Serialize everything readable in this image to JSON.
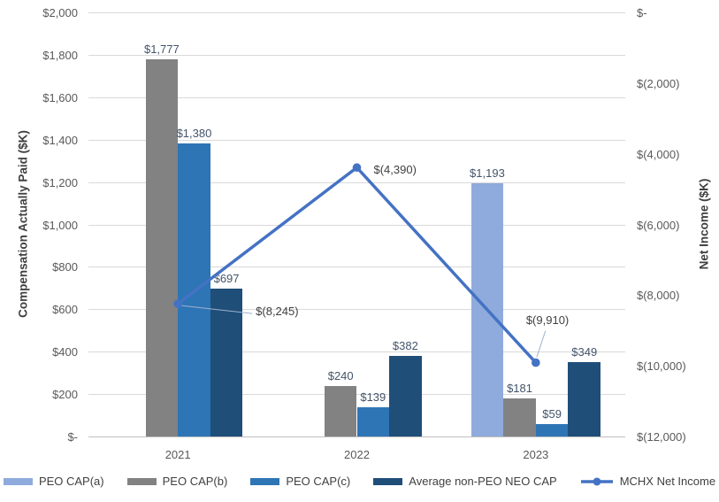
{
  "chart_data": {
    "type": "bar+line",
    "title": "",
    "categories": [
      "2021",
      "2022",
      "2023"
    ],
    "bar_series": [
      {
        "name": "PEO CAP(a)",
        "color": "#8FAADC",
        "values": [
          null,
          null,
          1193
        ],
        "labels": [
          null,
          null,
          "$1,193"
        ]
      },
      {
        "name": "PEO CAP(b)",
        "color": "#828282",
        "values": [
          1777,
          240,
          181
        ],
        "labels": [
          "$1,777",
          "$240",
          "$181"
        ]
      },
      {
        "name": "PEO CAP(c)",
        "color": "#2E75B6",
        "values": [
          1380,
          139,
          59
        ],
        "labels": [
          "$1,380",
          "$139",
          "$59"
        ]
      },
      {
        "name": "Average non-PEO NEO CAP",
        "color": "#1F4E79",
        "values": [
          697,
          382,
          349
        ],
        "labels": [
          "$697",
          "$382",
          "$349"
        ]
      }
    ],
    "line_series": {
      "name": "MCHX Net Income",
      "color": "#4472C4",
      "values": [
        -8245,
        -4390,
        -9910
      ],
      "labels": [
        "$(8,245)",
        "$(4,390)",
        "$(9,910)"
      ]
    },
    "left_axis": {
      "title": "Compensation Actually Paid ($K)",
      "min": 0,
      "max": 2000,
      "step": 200,
      "tick_labels": [
        "$-",
        "$200",
        "$400",
        "$600",
        "$800",
        "$1,000",
        "$1,200",
        "$1,400",
        "$1,600",
        "$1,800",
        "$2,000"
      ]
    },
    "right_axis": {
      "title": "Net Income ($K)",
      "min": -12000,
      "max": 0,
      "step": 2000,
      "tick_labels": [
        "$-",
        "$(2,000)",
        "$(4,000)",
        "$(6,000)",
        "$(8,000)",
        "$(10,000)",
        "$(12,000)"
      ]
    },
    "legend": [
      "PEO CAP(a)",
      "PEO CAP(b)",
      "PEO CAP(c)",
      "Average non-PEO NEO CAP",
      "MCHX Net Income"
    ],
    "legend_position": "bottom",
    "grid": true,
    "colors": {
      "gridline": "#D9D9D9",
      "axis_line": "#BFBFBF",
      "tick_text": "#595959",
      "bar_label_text": "#44546A",
      "line_label_text": "#3F3F3F",
      "leader_line": "#9FB1CE"
    }
  }
}
